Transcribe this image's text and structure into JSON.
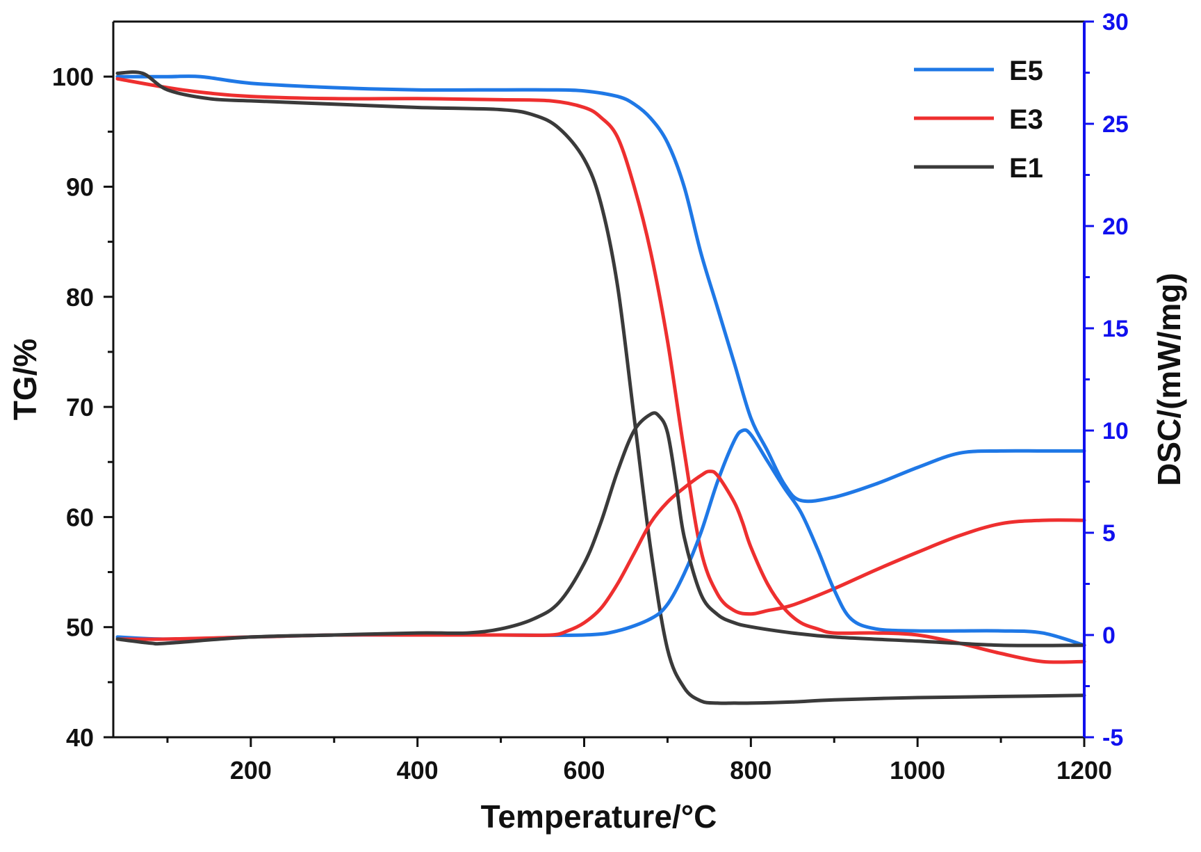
{
  "chart_data": {
    "type": "line",
    "title": "",
    "xlabel": "Temperature/°C",
    "ylabel_left": "TG/%",
    "ylabel_right": "DSC/(mW/mg)",
    "xlim": [
      35,
      1200
    ],
    "ylim_left": [
      40,
      105
    ],
    "ylim_right": [
      -5,
      30
    ],
    "x_ticks": [
      200,
      400,
      600,
      800,
      1000,
      1200
    ],
    "x_minor_ticks": [
      100,
      300,
      500,
      700,
      900,
      1100
    ],
    "y_left_ticks": [
      40,
      50,
      60,
      70,
      80,
      90,
      100
    ],
    "y_right_ticks": [
      -5,
      0,
      5,
      10,
      15,
      20,
      25,
      30
    ],
    "grid": false,
    "legend_position": "top-right",
    "legend": [
      "E5",
      "E3",
      "E1"
    ],
    "colors": {
      "E5": "#1f78e6",
      "E3": "#ee2f2f",
      "E1": "#3a3a3a",
      "right_axis": "#1010ee",
      "axes": "#111111"
    },
    "series": [
      {
        "name": "E5",
        "kind": "TG",
        "axis": "left",
        "x": [
          40,
          100,
          140,
          200,
          300,
          400,
          500,
          560,
          600,
          640,
          660,
          680,
          700,
          720,
          740,
          760,
          780,
          800,
          820,
          840,
          860,
          900,
          950,
          1000,
          1050,
          1100,
          1150,
          1200
        ],
        "y": [
          100,
          100,
          100,
          99.4,
          99,
          98.8,
          98.8,
          98.8,
          98.7,
          98.2,
          97.5,
          96.2,
          94,
          90,
          84,
          79,
          74,
          69,
          66,
          63,
          61.5,
          61.8,
          63,
          64.5,
          65.8,
          66,
          66,
          66
        ]
      },
      {
        "name": "E3",
        "kind": "TG",
        "axis": "left",
        "x": [
          40,
          100,
          150,
          200,
          300,
          400,
          500,
          560,
          600,
          620,
          640,
          660,
          680,
          700,
          720,
          740,
          760,
          780,
          800,
          820,
          850,
          900,
          950,
          1000,
          1050,
          1100,
          1150,
          1200
        ],
        "y": [
          99.8,
          99,
          98.5,
          98.2,
          98,
          98,
          97.9,
          97.8,
          97.2,
          96.3,
          94.5,
          90,
          84,
          76,
          66,
          57,
          53,
          51.5,
          51.2,
          51.5,
          52,
          53.5,
          55.2,
          56.8,
          58.3,
          59.4,
          59.7,
          59.7
        ]
      },
      {
        "name": "E1",
        "kind": "TG",
        "axis": "left",
        "x": [
          40,
          70,
          100,
          150,
          200,
          300,
          400,
          500,
          540,
          570,
          600,
          620,
          640,
          660,
          680,
          700,
          720,
          740,
          760,
          780,
          800,
          850,
          900,
          1000,
          1100,
          1200
        ],
        "y": [
          100.3,
          100.3,
          98.8,
          98,
          97.8,
          97.5,
          97.2,
          97,
          96.5,
          95.3,
          92.5,
          88.5,
          81,
          69,
          57,
          48,
          44.5,
          43.3,
          43.1,
          43.1,
          43.1,
          43.2,
          43.4,
          43.6,
          43.7,
          43.8
        ]
      },
      {
        "name": "E5",
        "kind": "DSC",
        "axis": "right",
        "x": [
          40,
          100,
          200,
          300,
          400,
          500,
          600,
          640,
          680,
          700,
          720,
          740,
          760,
          780,
          790,
          800,
          820,
          840,
          860,
          880,
          900,
          920,
          950,
          1000,
          1050,
          1100,
          1150,
          1200
        ],
        "y": [
          -0.1,
          -0.2,
          -0.1,
          0,
          0,
          0,
          0,
          0.2,
          0.8,
          1.5,
          3,
          5,
          7.5,
          9.5,
          10,
          9.8,
          8.5,
          7.2,
          6,
          4.2,
          2.2,
          0.8,
          0.3,
          0.2,
          0.2,
          0.2,
          0.1,
          -0.5
        ]
      },
      {
        "name": "E3",
        "kind": "DSC",
        "axis": "right",
        "x": [
          40,
          100,
          200,
          300,
          400,
          500,
          560,
          580,
          600,
          620,
          640,
          660,
          680,
          700,
          720,
          740,
          750,
          760,
          780,
          790,
          800,
          820,
          840,
          860,
          880,
          900,
          950,
          1000,
          1050,
          1100,
          1150,
          1200
        ],
        "y": [
          -0.2,
          -0.2,
          -0.1,
          0,
          0,
          0,
          0,
          0.2,
          0.6,
          1.3,
          2.5,
          4,
          5.5,
          6.5,
          7.2,
          7.8,
          8,
          7.8,
          6.5,
          5.5,
          4.3,
          2.5,
          1.3,
          0.6,
          0.3,
          0.1,
          0.1,
          0,
          -0.4,
          -0.9,
          -1.3,
          -1.3
        ]
      },
      {
        "name": "E1",
        "kind": "DSC",
        "axis": "right",
        "x": [
          40,
          80,
          100,
          200,
          300,
          400,
          460,
          500,
          540,
          570,
          600,
          620,
          640,
          660,
          680,
          690,
          700,
          710,
          720,
          740,
          760,
          780,
          800,
          850,
          900,
          1000,
          1100,
          1200
        ],
        "y": [
          -0.2,
          -0.4,
          -0.4,
          -0.1,
          0,
          0.1,
          0.1,
          0.3,
          0.8,
          1.6,
          3.5,
          5.5,
          8,
          10,
          10.8,
          10.7,
          9.9,
          7.5,
          4.8,
          2,
          1,
          0.6,
          0.4,
          0.1,
          -0.1,
          -0.3,
          -0.5,
          -0.5
        ]
      }
    ]
  }
}
